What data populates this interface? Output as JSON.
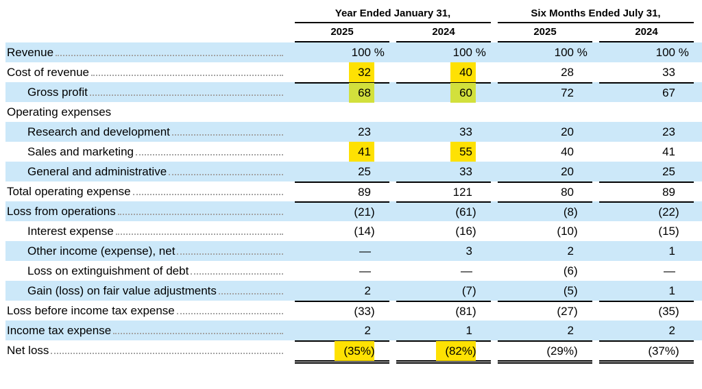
{
  "header": {
    "groups": [
      {
        "label": "Year Ended January 31,"
      },
      {
        "label": "Six Months Ended July 31,"
      }
    ],
    "years": [
      "2025",
      "2024",
      "2025",
      "2024"
    ]
  },
  "colors": {
    "row_shaded_blue": "#cce8f9",
    "highlight_yellow": "#fee103",
    "highlight_green_on_blue": "#d2e03c",
    "rule_black": "#000000"
  },
  "chart_data": {
    "type": "table",
    "title": "",
    "column_groups": [
      "Year Ended January 31,",
      "Six Months Ended July 31,"
    ],
    "columns": [
      "FY 2025",
      "FY 2024",
      "6M 2025",
      "6M 2024"
    ],
    "rows_pct_of_revenue": {
      "Revenue": [
        100,
        100,
        100,
        100
      ],
      "Cost of revenue": [
        32,
        40,
        28,
        33
      ],
      "Gross profit": [
        68,
        60,
        72,
        67
      ],
      "Research and development": [
        23,
        33,
        20,
        23
      ],
      "Sales and marketing": [
        41,
        55,
        40,
        41
      ],
      "General and administrative": [
        25,
        33,
        20,
        25
      ],
      "Total operating expense": [
        89,
        121,
        80,
        89
      ],
      "Loss from operations": [
        -21,
        -61,
        -8,
        -22
      ],
      "Interest expense": [
        -14,
        -16,
        -10,
        -15
      ],
      "Other income (expense), net": [
        null,
        3,
        2,
        1
      ],
      "Loss on extinguishment of debt": [
        null,
        null,
        -6,
        null
      ],
      "Gain (loss) on fair value adjustments": [
        2,
        -7,
        -5,
        1
      ],
      "Loss before income tax expense": [
        -33,
        -81,
        -27,
        -35
      ],
      "Income tax expense": [
        2,
        1,
        2,
        2
      ],
      "Net loss": [
        -35,
        -82,
        -29,
        -37
      ]
    }
  },
  "rows": [
    {
      "label": "Revenue",
      "indent": 0,
      "leaders": true,
      "shaded": true,
      "values": [
        "100 %",
        "100 %",
        "100 %",
        "100 %"
      ],
      "hl": []
    },
    {
      "label": "Cost of revenue",
      "indent": 0,
      "leaders": true,
      "shaded": false,
      "values": [
        "32",
        "40",
        "28",
        "33"
      ],
      "hl": [
        0,
        1
      ]
    },
    {
      "label": "Gross profit",
      "indent": 1,
      "leaders": true,
      "shaded": true,
      "values": [
        "68",
        "60",
        "72",
        "67"
      ],
      "hl": [
        0,
        1
      ],
      "border_top": true
    },
    {
      "label": "Operating expenses",
      "indent": 0,
      "leaders": false,
      "shaded": false,
      "values": [
        "",
        "",
        "",
        ""
      ],
      "hl": []
    },
    {
      "label": "Research and development",
      "indent": 1,
      "leaders": true,
      "shaded": true,
      "values": [
        "23",
        "33",
        "20",
        "23"
      ],
      "hl": []
    },
    {
      "label": "Sales and marketing",
      "indent": 1,
      "leaders": true,
      "shaded": false,
      "values": [
        "41",
        "55",
        "40",
        "41"
      ],
      "hl": [
        0,
        1
      ]
    },
    {
      "label": "General and administrative",
      "indent": 1,
      "leaders": true,
      "shaded": true,
      "values": [
        "25",
        "33",
        "20",
        "25"
      ],
      "hl": []
    },
    {
      "label": "Total operating expense",
      "indent": 0,
      "leaders": true,
      "shaded": false,
      "values": [
        "89",
        "121",
        "80",
        "89"
      ],
      "hl": [],
      "border_top": true
    },
    {
      "label": "Loss from operations",
      "indent": 0,
      "leaders": true,
      "shaded": true,
      "values": [
        "(21)",
        "(61)",
        "(8)",
        "(22)"
      ],
      "hl": [],
      "border_top": true
    },
    {
      "label": "Interest expense",
      "indent": 1,
      "leaders": true,
      "shaded": false,
      "values": [
        "(14)",
        "(16)",
        "(10)",
        "(15)"
      ],
      "hl": []
    },
    {
      "label": "Other income (expense), net",
      "indent": 1,
      "leaders": true,
      "shaded": true,
      "values": [
        "—",
        "3",
        "2",
        "1"
      ],
      "hl": []
    },
    {
      "label": "Loss on extinguishment of debt",
      "indent": 1,
      "leaders": true,
      "shaded": false,
      "values": [
        "—",
        "—",
        "(6)",
        "—"
      ],
      "hl": []
    },
    {
      "label": "Gain (loss) on fair value adjustments",
      "indent": 1,
      "leaders": true,
      "shaded": true,
      "values": [
        "2",
        "(7)",
        "(5)",
        "1"
      ],
      "hl": []
    },
    {
      "label": "Loss before income tax expense",
      "indent": 0,
      "leaders": true,
      "shaded": false,
      "values": [
        "(33)",
        "(81)",
        "(27)",
        "(35)"
      ],
      "hl": [],
      "border_top": true
    },
    {
      "label": "Income tax expense",
      "indent": 0,
      "leaders": true,
      "shaded": true,
      "values": [
        "2",
        "1",
        "2",
        "2"
      ],
      "hl": []
    },
    {
      "label": "Net loss",
      "indent": 0,
      "leaders": true,
      "shaded": false,
      "values": [
        "(35%)",
        "(82%)",
        "(29%)",
        "(37%)"
      ],
      "hl": [
        0,
        1
      ],
      "border_top": true,
      "border_bottom_double": true
    }
  ]
}
